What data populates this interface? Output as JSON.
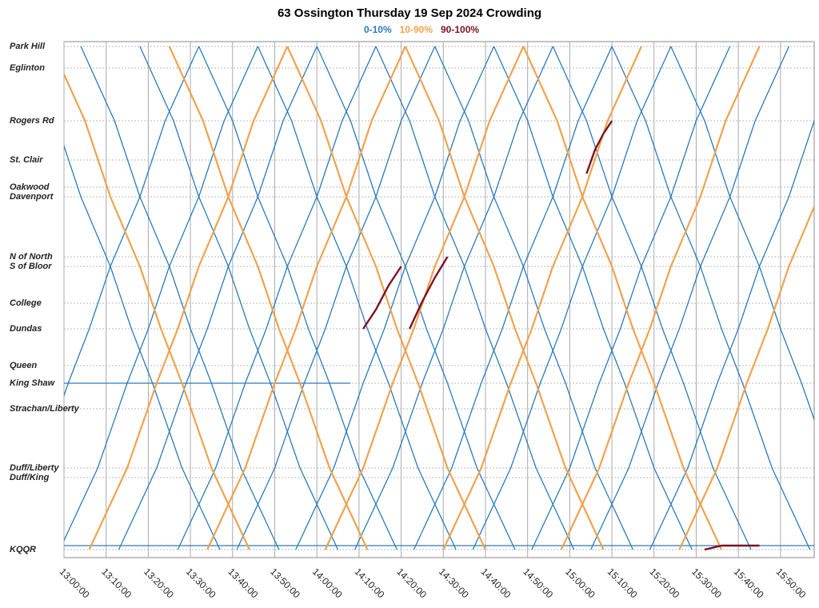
{
  "chart_data": {
    "type": "marey",
    "title": "63 Ossington Thursday 19 Sep 2024 Crowding",
    "xlim": [
      780,
      958
    ],
    "xticks": [
      {
        "value": 780,
        "label": "13:00:00"
      },
      {
        "value": 790,
        "label": "13:10:00"
      },
      {
        "value": 800,
        "label": "13:20:00"
      },
      {
        "value": 810,
        "label": "13:30:00"
      },
      {
        "value": 820,
        "label": "13:40:00"
      },
      {
        "value": 830,
        "label": "13:50:00"
      },
      {
        "value": 840,
        "label": "14:00:00"
      },
      {
        "value": 850,
        "label": "14:10:00"
      },
      {
        "value": 860,
        "label": "14:20:00"
      },
      {
        "value": 870,
        "label": "14:30:00"
      },
      {
        "value": 880,
        "label": "14:40:00"
      },
      {
        "value": 890,
        "label": "14:50:00"
      },
      {
        "value": 900,
        "label": "15:00:00"
      },
      {
        "value": 910,
        "label": "15:10:00"
      },
      {
        "value": 920,
        "label": "15:20:00"
      },
      {
        "value": 930,
        "label": "15:30:00"
      },
      {
        "value": 940,
        "label": "15:40:00"
      },
      {
        "value": 950,
        "label": "15:50:00"
      }
    ],
    "ylim": [
      -10,
      635
    ],
    "yticks": [
      {
        "value": 629,
        "label": "Park Hill"
      },
      {
        "value": 602,
        "label": "Eglinton"
      },
      {
        "value": 536,
        "label": "Rogers Rd"
      },
      {
        "value": 487,
        "label": "St. Clair"
      },
      {
        "value": 453,
        "label": "Oakwood"
      },
      {
        "value": 441,
        "label": "Davenport"
      },
      {
        "value": 366,
        "label": "N of North"
      },
      {
        "value": 354,
        "label": "S of Bloor"
      },
      {
        "value": 308,
        "label": "College"
      },
      {
        "value": 276,
        "label": "Dundas"
      },
      {
        "value": 230,
        "label": "Queen"
      },
      {
        "value": 208,
        "label": "King Shaw"
      },
      {
        "value": 176,
        "label": "Strachan/Liberty"
      },
      {
        "value": 102,
        "label": "Duff/Liberty"
      },
      {
        "value": 90,
        "label": "Duff/King"
      },
      {
        "value": 0,
        "label": "KQQR"
      }
    ],
    "grid": true,
    "series": [
      {
        "name": "0-10%",
        "color": "#2b7bba",
        "trips": [
          {
            "x": [
              770,
              778,
              784,
              791,
              796,
              801,
              808,
              817
            ],
            "y": [
              629,
              536,
              441,
              354,
              276,
              208,
              102,
              0
            ]
          },
          {
            "x": [
              784,
              792,
              798,
              805,
              810,
              815,
              822,
              831
            ],
            "y": [
              629,
              536,
              441,
              354,
              276,
              208,
              102,
              0
            ]
          },
          {
            "x": [
              798,
              806,
              812,
              819,
              824,
              829,
              836,
              845
            ],
            "y": [
              629,
              536,
              441,
              354,
              276,
              208,
              102,
              0
            ]
          },
          {
            "x": [
              812,
              820,
              826,
              833,
              838,
              843,
              850,
              859
            ],
            "y": [
              629,
              536,
              441,
              354,
              276,
              208,
              102,
              0
            ]
          },
          {
            "x": [
              826,
              834,
              840,
              847,
              852,
              857,
              864,
              873
            ],
            "y": [
              629,
              536,
              441,
              354,
              276,
              208,
              102,
              0
            ]
          },
          {
            "x": [
              840,
              848,
              854,
              861,
              866,
              871,
              878,
              887
            ],
            "y": [
              629,
              536,
              441,
              354,
              276,
              208,
              102,
              0
            ]
          },
          {
            "x": [
              854,
              862,
              868,
              875,
              880,
              885,
              892,
              901
            ],
            "y": [
              629,
              536,
              441,
              354,
              276,
              208,
              102,
              0
            ]
          },
          {
            "x": [
              868,
              876,
              882,
              889,
              894,
              899,
              906,
              915
            ],
            "y": [
              629,
              536,
              441,
              354,
              276,
              208,
              102,
              0
            ]
          },
          {
            "x": [
              882,
              890,
              896,
              903,
              908,
              913,
              920,
              929
            ],
            "y": [
              629,
              536,
              441,
              354,
              276,
              208,
              102,
              0
            ]
          },
          {
            "x": [
              896,
              904,
              910,
              917,
              922,
              927,
              934,
              943
            ],
            "y": [
              629,
              536,
              441,
              354,
              276,
              208,
              102,
              0
            ]
          },
          {
            "x": [
              910,
              918,
              924,
              931,
              936,
              941,
              948,
              957
            ],
            "y": [
              629,
              536,
              441,
              354,
              276,
              208,
              102,
              0
            ]
          },
          {
            "x": [
              924,
              932,
              938,
              945,
              950,
              955,
              962,
              971
            ],
            "y": [
              629,
              536,
              441,
              354,
              276,
              208,
              102,
              0
            ]
          },
          {
            "x": [
              765,
              774,
              781,
              786,
              791,
              798,
              804,
              812
            ],
            "y": [
              0,
              102,
              208,
              276,
              354,
              441,
              536,
              629
            ]
          },
          {
            "x": [
              779,
              788,
              795,
              800,
              805,
              812,
              818,
              826
            ],
            "y": [
              0,
              102,
              208,
              276,
              354,
              441,
              536,
              629
            ]
          },
          {
            "x": [
              793,
              802,
              809,
              814,
              819,
              826,
              832,
              840
            ],
            "y": [
              0,
              102,
              208,
              276,
              354,
              441,
              536,
              629
            ]
          },
          {
            "x": [
              807,
              816,
              823,
              828,
              833,
              840,
              846,
              854
            ],
            "y": [
              0,
              102,
              208,
              276,
              354,
              441,
              536,
              629
            ]
          },
          {
            "x": [
              821,
              830,
              837,
              842,
              847,
              854,
              860,
              868
            ],
            "y": [
              0,
              102,
              208,
              276,
              354,
              441,
              536,
              629
            ]
          },
          {
            "x": [
              835,
              844,
              851,
              856,
              861,
              868,
              874,
              882
            ],
            "y": [
              0,
              102,
              208,
              276,
              354,
              441,
              536,
              629
            ]
          },
          {
            "x": [
              849,
              858,
              865,
              870,
              875,
              882,
              888,
              896
            ],
            "y": [
              0,
              102,
              208,
              276,
              354,
              441,
              536,
              629
            ]
          },
          {
            "x": [
              863,
              872,
              879,
              884,
              889,
              896,
              902,
              910
            ],
            "y": [
              0,
              102,
              208,
              276,
              354,
              441,
              536,
              629
            ]
          },
          {
            "x": [
              877,
              886,
              893,
              898,
              903,
              910,
              916,
              924
            ],
            "y": [
              0,
              102,
              208,
              276,
              354,
              441,
              536,
              629
            ]
          },
          {
            "x": [
              891,
              900,
              907,
              912,
              917,
              924,
              930,
              938
            ],
            "y": [
              0,
              102,
              208,
              276,
              354,
              441,
              536,
              629
            ]
          },
          {
            "x": [
              905,
              914,
              921,
              926,
              931,
              938,
              944,
              952
            ],
            "y": [
              0,
              102,
              208,
              276,
              354,
              441,
              536,
              629
            ]
          },
          {
            "x": [
              919,
              928,
              935,
              940,
              945,
              952,
              958,
              966
            ],
            "y": [
              0,
              102,
              208,
              276,
              354,
              441,
              536,
              629
            ]
          },
          {
            "x": [
              780,
              848
            ],
            "y": [
              208,
              208
            ]
          },
          {
            "x": [
              780,
              958
            ],
            "y": [
              5,
              5
            ]
          }
        ]
      },
      {
        "name": "10-90%",
        "color": "#f0a24e",
        "trips": [
          {
            "x": [
              777,
              785,
              791,
              798,
              803,
              808,
              815,
              824
            ],
            "y": [
              629,
              536,
              441,
              354,
              276,
              208,
              102,
              0
            ]
          },
          {
            "x": [
              805,
              813,
              819,
              826,
              831,
              836,
              843,
              852
            ],
            "y": [
              629,
              536,
              441,
              354,
              276,
              208,
              102,
              0
            ]
          },
          {
            "x": [
              833,
              841,
              847,
              854,
              859,
              864,
              871,
              880
            ],
            "y": [
              629,
              536,
              441,
              354,
              276,
              208,
              102,
              0
            ]
          },
          {
            "x": [
              861,
              869,
              875,
              882,
              887,
              892,
              899,
              908
            ],
            "y": [
              629,
              536,
              441,
              354,
              276,
              208,
              102,
              0
            ]
          },
          {
            "x": [
              889,
              897,
              903,
              910,
              915,
              920,
              927,
              936
            ],
            "y": [
              629,
              536,
              441,
              354,
              276,
              208,
              102,
              0
            ]
          },
          {
            "x": [
              786,
              795,
              802,
              807,
              812,
              819,
              825,
              833
            ],
            "y": [
              0,
              102,
              208,
              276,
              354,
              441,
              536,
              629
            ]
          },
          {
            "x": [
              814,
              823,
              830,
              835,
              840,
              847,
              853,
              861
            ],
            "y": [
              0,
              102,
              208,
              276,
              354,
              441,
              536,
              629
            ]
          },
          {
            "x": [
              842,
              851,
              858,
              863,
              868,
              875,
              881,
              889
            ],
            "y": [
              0,
              102,
              208,
              276,
              354,
              441,
              536,
              629
            ]
          },
          {
            "x": [
              870,
              879,
              886,
              891,
              896,
              903,
              909,
              917
            ],
            "y": [
              0,
              102,
              208,
              276,
              354,
              441,
              536,
              629
            ]
          },
          {
            "x": [
              898,
              907,
              914,
              919,
              924,
              931,
              937,
              945
            ],
            "y": [
              0,
              102,
              208,
              276,
              354,
              441,
              536,
              629
            ]
          },
          {
            "x": [
              926,
              935,
              942,
              947,
              952,
              959,
              965,
              973
            ],
            "y": [
              0,
              102,
              208,
              276,
              354,
              441,
              536,
              629
            ]
          }
        ]
      },
      {
        "name": "90-100%",
        "color": "#7a1222",
        "trips": [
          {
            "x": [
              851,
              854,
              857,
              860
            ],
            "y": [
              276,
              300,
              330,
              354
            ]
          },
          {
            "x": [
              862,
              865,
              868,
              871
            ],
            "y": [
              276,
              310,
              340,
              366
            ]
          },
          {
            "x": [
              904,
              906,
              908,
              910
            ],
            "y": [
              470,
              500,
              520,
              536
            ]
          },
          {
            "x": [
              932,
              936,
              945
            ],
            "y": [
              0,
              5,
              5
            ]
          }
        ]
      }
    ]
  }
}
